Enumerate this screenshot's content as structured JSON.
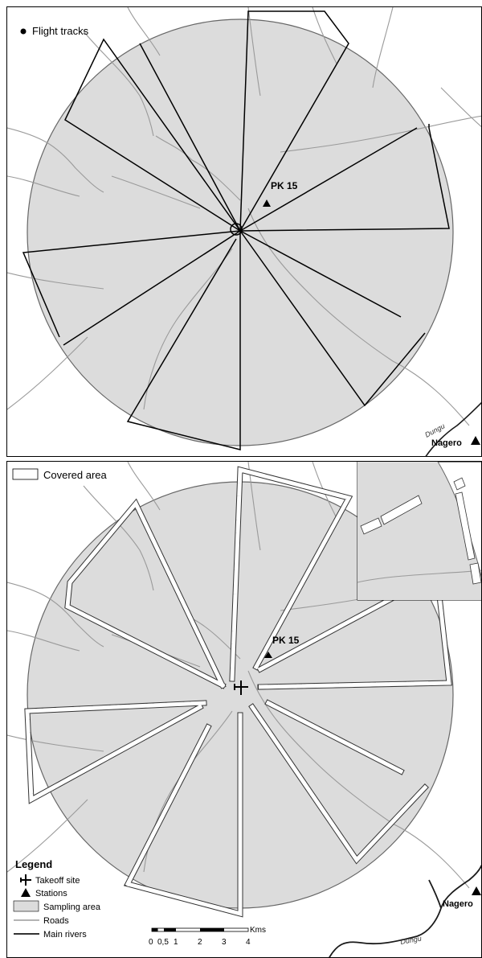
{
  "colors": {
    "sampling_area": "#dcdcdc",
    "roads": "#9a9a9a",
    "rivers": "#1a1a1a",
    "tracks": "#000000",
    "covered_area": "#ffffff"
  },
  "top_panel": {
    "legend_label": "Flight tracks",
    "station_label": "PK 15",
    "town_label": "Nagero",
    "river_label": "Dungu"
  },
  "bottom_panel": {
    "legend_label": "Covered area",
    "station_label": "PK 15",
    "town_label": "Nagero",
    "river_label": "Dungu"
  },
  "legend": {
    "title": "Legend",
    "items": [
      {
        "key": "takeoff",
        "label": "Takeoff site",
        "icon": "airplane-icon"
      },
      {
        "key": "stations",
        "label": "Stations",
        "icon": "triangle-icon"
      },
      {
        "key": "sampling",
        "label": "Sampling area",
        "icon": "gray-box-icon"
      },
      {
        "key": "roads",
        "label": "Roads",
        "icon": "thin-gray-line-icon"
      },
      {
        "key": "rivers",
        "label": "Main rivers",
        "icon": "dark-line-icon"
      }
    ]
  },
  "scale_bar": {
    "unit": "Kms",
    "ticks": [
      "0",
      "0,5",
      "1",
      "2",
      "3",
      "4"
    ]
  }
}
